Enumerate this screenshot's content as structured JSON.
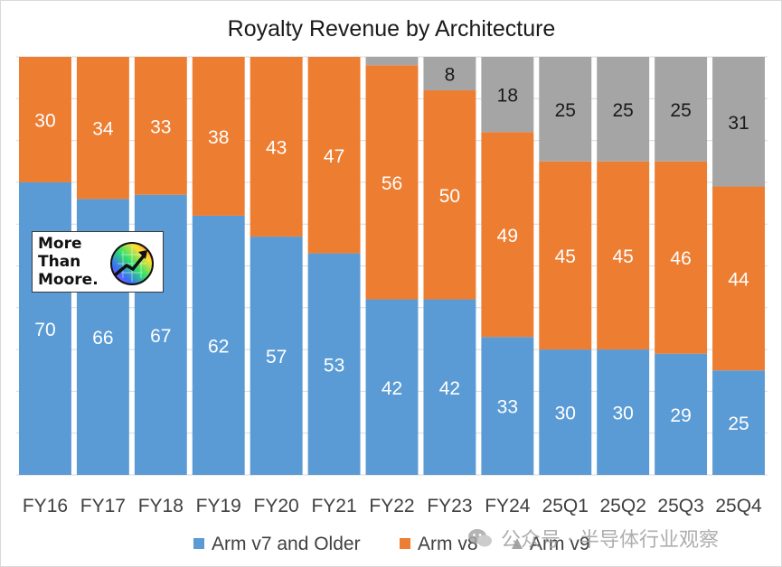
{
  "chart_data": {
    "type": "bar",
    "stacked": true,
    "normalized": true,
    "title": "Royalty Revenue by Architecture",
    "categories": [
      "FY16",
      "FY17",
      "FY18",
      "FY19",
      "FY20",
      "FY21",
      "FY22",
      "FY23",
      "FY24",
      "25Q1",
      "25Q2",
      "25Q3",
      "25Q4"
    ],
    "series": [
      {
        "name": "Arm v7 and Older",
        "color": "#5B9BD5",
        "values": [
          70,
          66,
          67,
          62,
          57,
          53,
          42,
          42,
          33,
          30,
          30,
          29,
          25
        ]
      },
      {
        "name": "Arm v8",
        "color": "#ED7D31",
        "values": [
          30,
          34,
          33,
          38,
          43,
          47,
          56,
          50,
          49,
          45,
          45,
          46,
          44
        ]
      },
      {
        "name": "Arm v9",
        "color": "#A5A5A5",
        "values": [
          0,
          0,
          0,
          0,
          0,
          0,
          2,
          8,
          18,
          25,
          25,
          25,
          31
        ]
      }
    ],
    "data_labels": [
      [
        "70",
        "66",
        "67",
        "62",
        "57",
        "53",
        "42",
        "42",
        "33",
        "30",
        "30",
        "29",
        "25"
      ],
      [
        "30",
        "34",
        "33",
        "38",
        "43",
        "47",
        "56",
        "50",
        "49",
        "45",
        "45",
        "46",
        "44"
      ],
      [
        "",
        "",
        "",
        "",
        "",
        "",
        "",
        "8",
        "18",
        "25",
        "25",
        "25",
        "31"
      ]
    ],
    "label_colors": [
      "#ffffff",
      "#ffffff",
      "#1a1a1a"
    ],
    "ylim": [
      0,
      100
    ],
    "grid": true,
    "legend_position": "bottom"
  },
  "logo": {
    "text": "More\nThan\nMoore.",
    "icon": "rainbow-wafer-arrow-icon"
  },
  "watermark": {
    "icon": "wechat-channel-icon",
    "text": "公众号 · 半导体行业观察"
  }
}
